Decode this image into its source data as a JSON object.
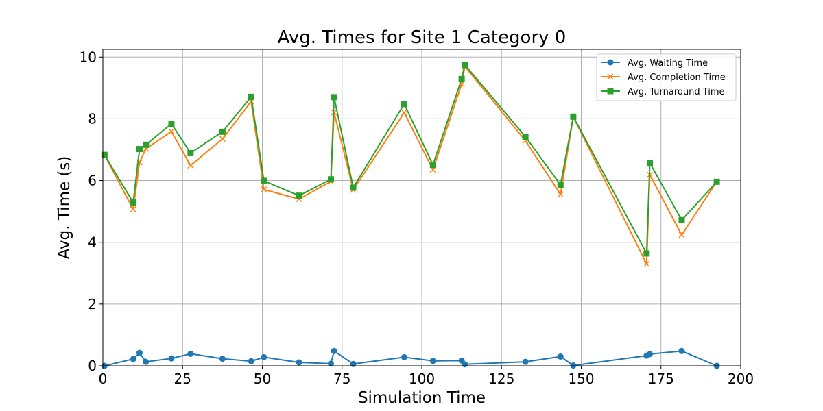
{
  "chart_data": {
    "type": "line",
    "title": "Avg. Times for Site 1 Category 0",
    "xlabel": "Simulation Time",
    "ylabel": "Avg. Time (s)",
    "xlim": [
      0,
      200
    ],
    "ylim": [
      0,
      10.25
    ],
    "grid": true,
    "legend_position": "top-right",
    "x_ticks": [
      "0",
      "25",
      "50",
      "75",
      "100",
      "125",
      "150",
      "175",
      "200"
    ],
    "x_tick_values": [
      0,
      25,
      50,
      75,
      100,
      125,
      150,
      175,
      200
    ],
    "y_ticks": [
      "0",
      "2",
      "4",
      "6",
      "8",
      "10"
    ],
    "y_tick_values": [
      0,
      2,
      4,
      6,
      8,
      10
    ],
    "x": [
      0.5,
      9.5,
      11.5,
      13.5,
      21.5,
      27.5,
      37.5,
      46.5,
      50.5,
      61.5,
      71.5,
      72.5,
      78.5,
      94.5,
      103.5,
      112.5,
      113.5,
      132.5,
      143.5,
      147.5,
      170.5,
      171.5,
      181.5,
      192.5
    ],
    "series": [
      {
        "name": "Avg. Waiting Time",
        "color": "#1f77b4",
        "marker": "circle",
        "values": [
          0.0,
          0.22,
          0.42,
          0.13,
          0.24,
          0.39,
          0.23,
          0.15,
          0.28,
          0.11,
          0.07,
          0.48,
          0.06,
          0.28,
          0.16,
          0.17,
          0.05,
          0.13,
          0.3,
          0.01,
          0.33,
          0.38,
          0.48,
          0.0
        ]
      },
      {
        "name": "Avg. Completion Time",
        "color": "#ff7f0e",
        "marker": "x",
        "values": [
          6.83,
          5.07,
          6.59,
          7.03,
          7.59,
          6.49,
          7.35,
          8.56,
          5.71,
          5.4,
          5.97,
          8.21,
          5.7,
          8.2,
          6.35,
          9.12,
          9.7,
          7.29,
          5.55,
          8.06,
          3.3,
          6.19,
          4.24,
          5.97
        ]
      },
      {
        "name": "Avg. Turnaround Time",
        "color": "#2ca02c",
        "marker": "square",
        "values": [
          6.83,
          5.29,
          7.02,
          7.16,
          7.84,
          6.89,
          7.58,
          8.71,
          5.99,
          5.51,
          6.04,
          8.7,
          5.77,
          8.48,
          6.51,
          9.29,
          9.75,
          7.42,
          5.86,
          8.07,
          3.64,
          6.57,
          4.72,
          5.96
        ]
      }
    ]
  }
}
